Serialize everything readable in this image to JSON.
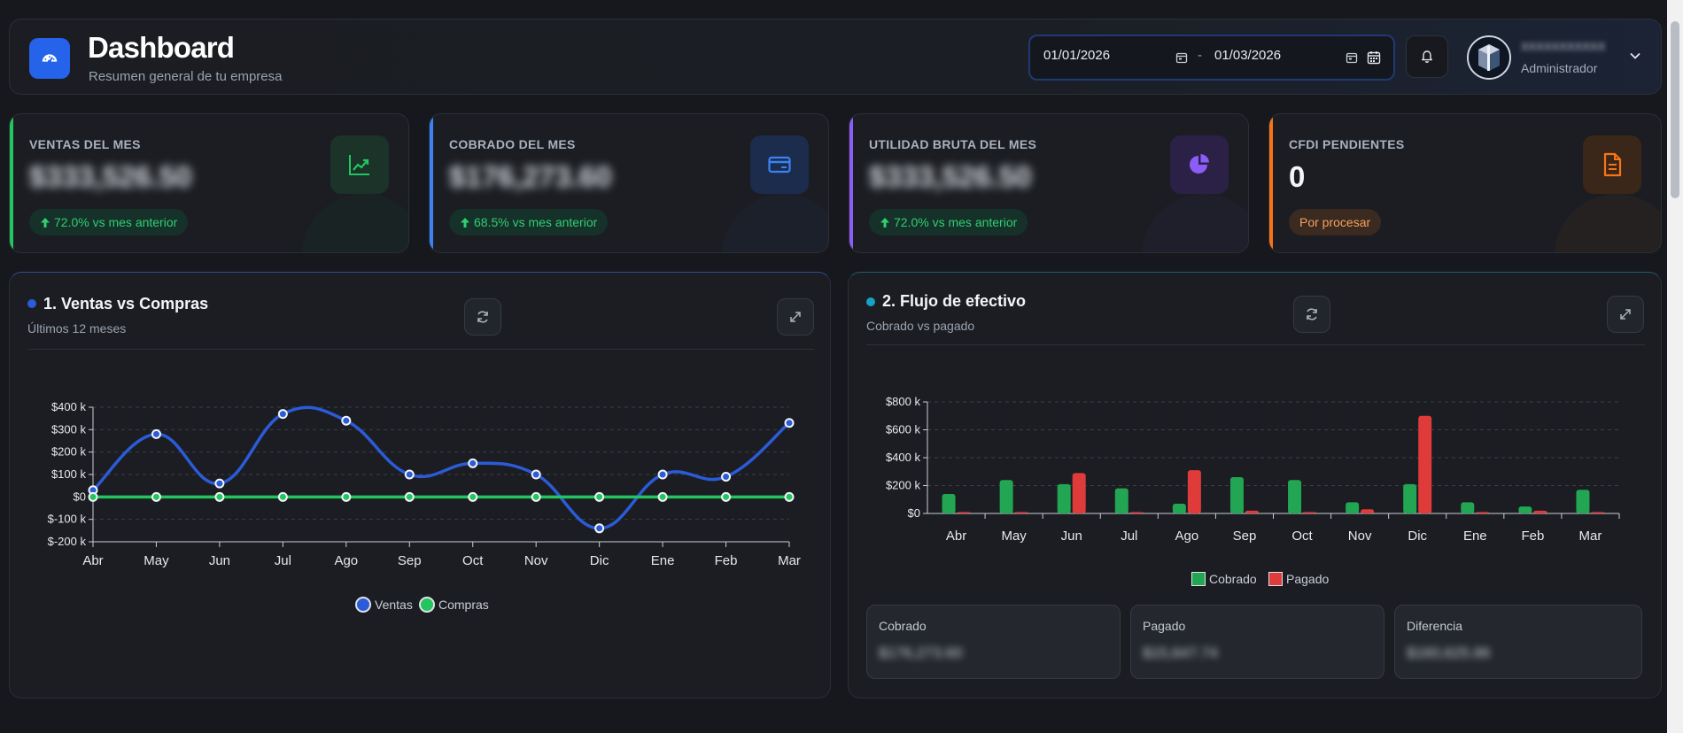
{
  "header": {
    "title": "Dashboard",
    "subtitle": "Resumen general de tu empresa",
    "date_from": "01/01/2026",
    "date_separator": "-",
    "date_to": "01/03/2026",
    "user_name": "XXXXXXXXXXX",
    "user_role": "Administrador"
  },
  "stats": [
    {
      "label": "VENTAS DEL MES",
      "value": "$333,526.50",
      "badge": "72.0% vs mes anterior",
      "color": "#22c55e",
      "icon": "trending-up-icon"
    },
    {
      "label": "COBRADO DEL MES",
      "value": "$176,273.60",
      "badge": "68.5% vs mes anterior",
      "color": "#3b82f6",
      "icon": "credit-card-icon"
    },
    {
      "label": "UTILIDAD BRUTA DEL MES",
      "value": "$333,526.50",
      "badge": "72.0% vs mes anterior",
      "color": "#8b5cf6",
      "icon": "pie-chart-icon"
    },
    {
      "label": "CFDI PENDIENTES",
      "value": "0",
      "badge": "Por procesar",
      "color": "#f97316",
      "icon": "document-icon"
    }
  ],
  "cards": {
    "ventas": {
      "title": "1. Ventas vs Compras",
      "subtitle": "Últimos 12 meses"
    },
    "flujo": {
      "title": "2. Flujo de efectivo",
      "subtitle": "Cobrado vs pagado"
    }
  },
  "summary": [
    {
      "label": "Cobrado",
      "value": "$176,273.60"
    },
    {
      "label": "Pagado",
      "value": "$15,647.74"
    },
    {
      "label": "Diferencia",
      "value": "$160,625.86"
    }
  ],
  "chart_data": [
    {
      "type": "line",
      "categories": [
        "Abr",
        "May",
        "Jun",
        "Jul",
        "Ago",
        "Sep",
        "Oct",
        "Nov",
        "Dic",
        "Ene",
        "Feb",
        "Mar"
      ],
      "series": [
        {
          "name": "Ventas",
          "color": "#2b5bd7",
          "values": [
            30,
            280,
            60,
            370,
            340,
            100,
            150,
            100,
            -140,
            100,
            90,
            330
          ]
        },
        {
          "name": "Compras",
          "color": "#22c55e",
          "values": [
            0,
            0,
            0,
            0,
            0,
            0,
            0,
            0,
            0,
            0,
            0,
            0
          ]
        }
      ],
      "yticks": [
        "$400 k",
        "$300 k",
        "$200 k",
        "$100 k",
        "$0",
        "$-100 k",
        "$-200 k"
      ],
      "ylim": [
        -200,
        400
      ],
      "legend": "bottom"
    },
    {
      "type": "bar",
      "categories": [
        "Abr",
        "May",
        "Jun",
        "Jul",
        "Ago",
        "Sep",
        "Oct",
        "Nov",
        "Dic",
        "Ene",
        "Feb",
        "Mar"
      ],
      "series": [
        {
          "name": "Cobrado",
          "color": "#22a653",
          "values": [
            140,
            240,
            210,
            180,
            70,
            260,
            240,
            80,
            210,
            80,
            50,
            170
          ]
        },
        {
          "name": "Pagado",
          "color": "#e03b3b",
          "values": [
            10,
            10,
            290,
            10,
            310,
            20,
            10,
            30,
            700,
            10,
            20,
            10
          ]
        }
      ],
      "yticks": [
        "$800 k",
        "$600 k",
        "$400 k",
        "$200 k",
        "$0"
      ],
      "ylim": [
        0,
        800
      ],
      "legend": "bottom"
    }
  ]
}
